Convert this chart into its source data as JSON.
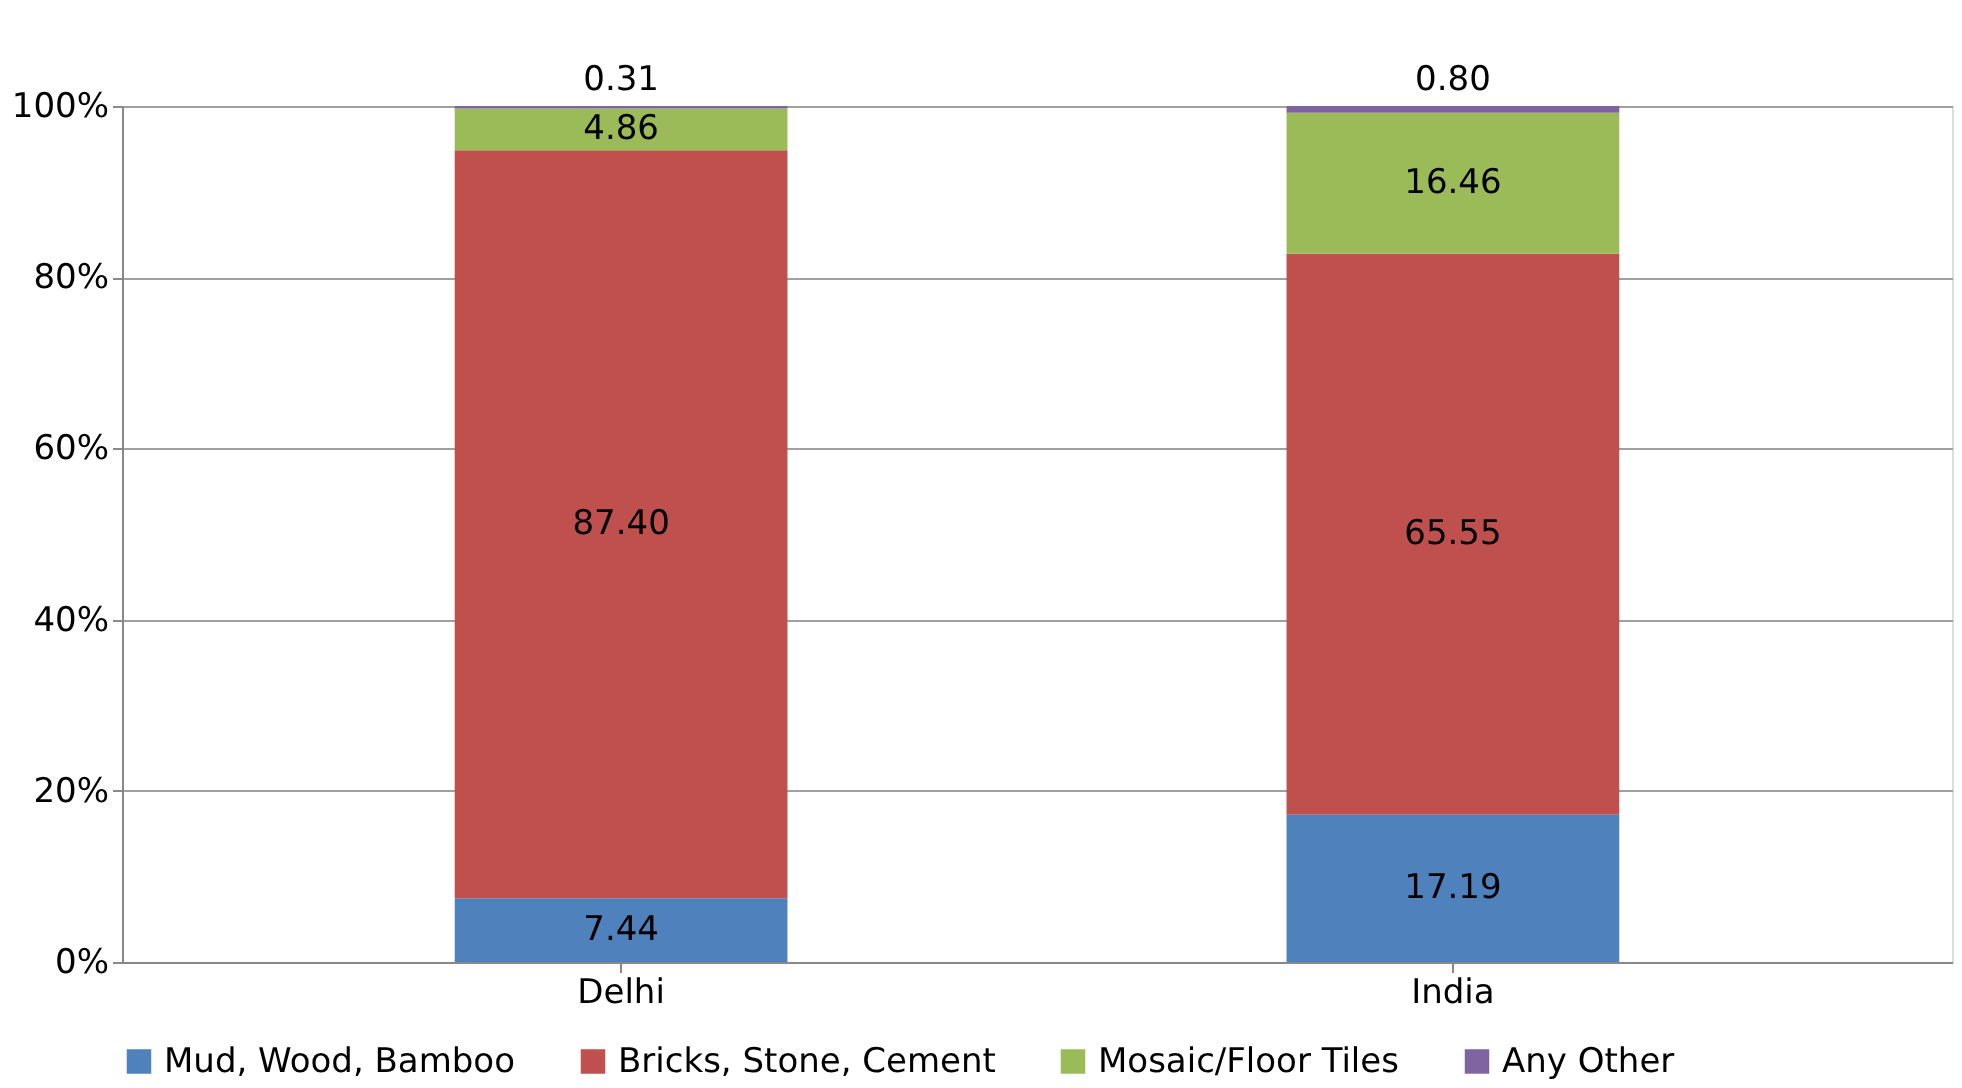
{
  "chart_data": {
    "type": "bar",
    "stacked": true,
    "categories": [
      "Delhi",
      "India"
    ],
    "series": [
      {
        "name": "Mud, Wood, Bamboo",
        "color": "#4f81bd",
        "values": [
          7.44,
          17.19
        ],
        "value_labels": [
          "7.44",
          "17.19"
        ]
      },
      {
        "name": "Bricks, Stone, Cement",
        "color": "#c0504d",
        "values": [
          87.4,
          65.55
        ],
        "value_labels": [
          "87.40",
          "65.55"
        ]
      },
      {
        "name": "Mosaic/Floor Tiles",
        "color": "#9bbb59",
        "values": [
          4.86,
          16.46
        ],
        "value_labels": [
          "4.86",
          "16.46"
        ]
      },
      {
        "name": "Any Other",
        "color": "#8064a2",
        "values": [
          0.31,
          0.8
        ],
        "value_labels": [
          "0.31",
          "0.80"
        ]
      }
    ],
    "ylim": [
      0,
      100
    ],
    "yticks": [
      {
        "value": 0,
        "label": "0%"
      },
      {
        "value": 20,
        "label": "20%"
      },
      {
        "value": 40,
        "label": "40%"
      },
      {
        "value": 60,
        "label": "60%"
      },
      {
        "value": 80,
        "label": "80%"
      },
      {
        "value": 100,
        "label": "100%"
      }
    ],
    "grid": "y",
    "legend": "bottom"
  }
}
